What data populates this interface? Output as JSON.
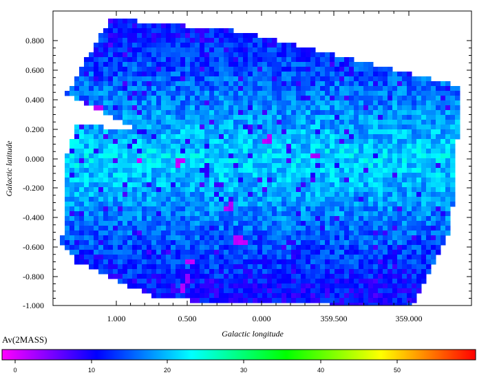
{
  "chart_data": {
    "type": "heatmap",
    "title": "",
    "xlabel": "Galactic longitude",
    "ylabel": "Galactic latitude",
    "x_ticks": [
      "1.000",
      "0.500",
      "0.000",
      "359.500",
      "359.000"
    ],
    "y_ticks": [
      "0.800",
      "0.600",
      "0.400",
      "0.200",
      "0.000",
      "-0.200",
      "-0.400",
      "-0.600",
      "-0.800",
      "-1.000"
    ],
    "xlim": [
      1.25,
      -0.75
    ],
    "ylim": [
      -1.0,
      0.9
    ],
    "colorbar": {
      "label": "Av(2MASS)",
      "ticks": [
        "0",
        "10",
        "20",
        "30",
        "40",
        "50"
      ],
      "range": [
        0,
        59
      ],
      "colormap": [
        "#ff00ff",
        "#0000ff",
        "#00ffff",
        "#00ff00",
        "#ffff00",
        "#ff0000"
      ]
    },
    "values_summary": {
      "typical_av_range": [
        10,
        25
      ],
      "high_latitude_av": 12,
      "plane_av": 22,
      "hotspots": [
        {
          "l": 0.84,
          "b": -0.01,
          "av": 2
        },
        {
          "l": 0.56,
          "b": -0.02,
          "av": 2
        },
        {
          "l": 0.2,
          "b": -0.33,
          "av": 3
        },
        {
          "l": 0.16,
          "b": -0.55,
          "av": 3
        },
        {
          "l": 0.11,
          "b": -0.57,
          "av": 2
        },
        {
          "l": 0.47,
          "b": -0.71,
          "av": 2
        },
        {
          "l": 0.5,
          "b": -0.82,
          "av": 3
        },
        {
          "l": 0.53,
          "b": -0.89,
          "av": 2
        },
        {
          "l": -0.07,
          "b": 0.13,
          "av": 2
        },
        {
          "l": -0.41,
          "b": 0.02,
          "av": 3
        },
        {
          "l": 1.13,
          "b": 0.35,
          "av": 3
        }
      ]
    }
  }
}
